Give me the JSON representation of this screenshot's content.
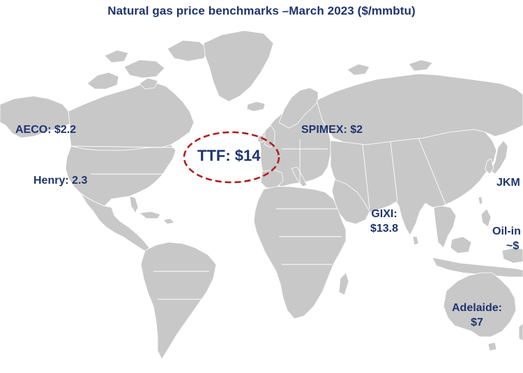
{
  "title": "Natural gas price benchmarks –March 2023 ($/mmbtu)",
  "map": {
    "land_color": "#c8c8c8",
    "border_color": "#ffffff",
    "highlight_ring_color": "#b11e1e"
  },
  "benchmarks": {
    "aeco": "AECO: $2.2",
    "henry": "Henry: 2.3",
    "ttf": "TTF: $14",
    "spimex": "SPIMEX: $2",
    "jkm": "JKM",
    "gixi_name": "GIXI:",
    "gixi_value": "$13.8",
    "oil_name": "Oil-in",
    "oil_value": "~$",
    "adelaide_name": "Adelaide:",
    "adelaide_value": "$7"
  }
}
